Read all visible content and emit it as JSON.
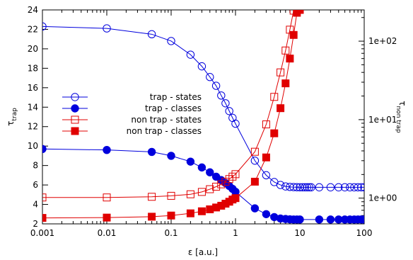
{
  "chart_data": {
    "type": "line",
    "title": "",
    "xlabel": "ε [a.u.]",
    "ylabel_left": {
      "main": "τ",
      "sub": "trap"
    },
    "ylabel_right": {
      "main": "τ",
      "sub": "non trap"
    },
    "x_scale": "log",
    "xlim": [
      0.001,
      100
    ],
    "x_ticks": [
      0.001,
      0.01,
      0.1,
      1,
      10,
      100
    ],
    "x_tick_labels": [
      "0.001",
      "0.01",
      "0.1",
      "1",
      "10",
      "100"
    ],
    "y_left_lim": [
      2,
      24
    ],
    "y_left_ticks": [
      2,
      4,
      6,
      8,
      10,
      12,
      14,
      16,
      18,
      20,
      22,
      24
    ],
    "y_left_tick_labels": [
      "2",
      "4",
      "6",
      "8",
      "10",
      "12",
      "14",
      "16",
      "18",
      "20",
      "22",
      "24"
    ],
    "y_right_scale": "log",
    "y_right_lim": [
      0.47,
      250
    ],
    "y_right_ticks": [
      1,
      10,
      100
    ],
    "y_right_tick_labels": [
      "1e+00",
      "1e+01",
      "1e+02"
    ],
    "legend_position": "left-middle",
    "grid": false,
    "series": [
      {
        "name": "trap - states",
        "axis": "left",
        "color": "#0000dd",
        "marker": "circle-open",
        "x": [
          0.001,
          0.01,
          0.05,
          0.1,
          0.2,
          0.3,
          0.4,
          0.5,
          0.6,
          0.7,
          0.8,
          0.9,
          1,
          2,
          3,
          4,
          5,
          6,
          7,
          8,
          9,
          10,
          11,
          12,
          13,
          14,
          15,
          20,
          30,
          40,
          50,
          60,
          70,
          80,
          90,
          100
        ],
        "y": [
          22.3,
          22.1,
          21.5,
          20.8,
          19.4,
          18.2,
          17.1,
          16.2,
          15.2,
          14.4,
          13.6,
          12.9,
          12.3,
          8.5,
          7.0,
          6.3,
          6.0,
          5.85,
          5.8,
          5.78,
          5.77,
          5.76,
          5.76,
          5.76,
          5.76,
          5.76,
          5.76,
          5.76,
          5.76,
          5.76,
          5.76,
          5.76,
          5.76,
          5.76,
          5.76,
          5.76
        ]
      },
      {
        "name": "trap - classes",
        "axis": "left",
        "color": "#0000dd",
        "marker": "circle-filled",
        "x": [
          0.001,
          0.01,
          0.05,
          0.1,
          0.2,
          0.3,
          0.4,
          0.5,
          0.6,
          0.7,
          0.8,
          0.9,
          1,
          2,
          3,
          4,
          5,
          6,
          7,
          8,
          9,
          10,
          20,
          30,
          40,
          50,
          60,
          70,
          80,
          90,
          100
        ],
        "y": [
          9.7,
          9.6,
          9.4,
          9.0,
          8.4,
          7.8,
          7.3,
          6.85,
          6.5,
          6.2,
          5.9,
          5.6,
          5.3,
          3.6,
          3.0,
          2.7,
          2.55,
          2.5,
          2.47,
          2.45,
          2.45,
          2.45,
          2.45,
          2.45,
          2.45,
          2.45,
          2.45,
          2.45,
          2.45,
          2.45,
          2.45
        ]
      },
      {
        "name": "non trap - states",
        "axis": "right",
        "color": "#e00000",
        "marker": "square-open",
        "x": [
          0.001,
          0.01,
          0.05,
          0.1,
          0.2,
          0.3,
          0.4,
          0.5,
          0.6,
          0.7,
          0.8,
          0.9,
          1,
          2,
          3,
          4,
          5,
          6,
          7,
          8,
          9
        ],
        "y": [
          1.02,
          1.02,
          1.04,
          1.07,
          1.12,
          1.2,
          1.3,
          1.4,
          1.5,
          1.62,
          1.75,
          1.88,
          2.02,
          3.9,
          8.7,
          19.5,
          40.0,
          76.0,
          140.0,
          245.0,
          250.0
        ]
      },
      {
        "name": "non trap - classes",
        "axis": "right",
        "color": "#e00000",
        "marker": "square-filled",
        "x": [
          0.001,
          0.01,
          0.05,
          0.1,
          0.2,
          0.3,
          0.4,
          0.5,
          0.6,
          0.7,
          0.8,
          0.9,
          1,
          2,
          3,
          4,
          5,
          6,
          7,
          8,
          9,
          10
        ],
        "y": [
          0.56,
          0.565,
          0.58,
          0.6,
          0.64,
          0.68,
          0.72,
          0.76,
          0.8,
          0.85,
          0.9,
          0.96,
          1.0,
          1.62,
          3.3,
          6.7,
          14.0,
          29.0,
          60.0,
          120.0,
          230.0,
          250.0
        ]
      }
    ]
  }
}
